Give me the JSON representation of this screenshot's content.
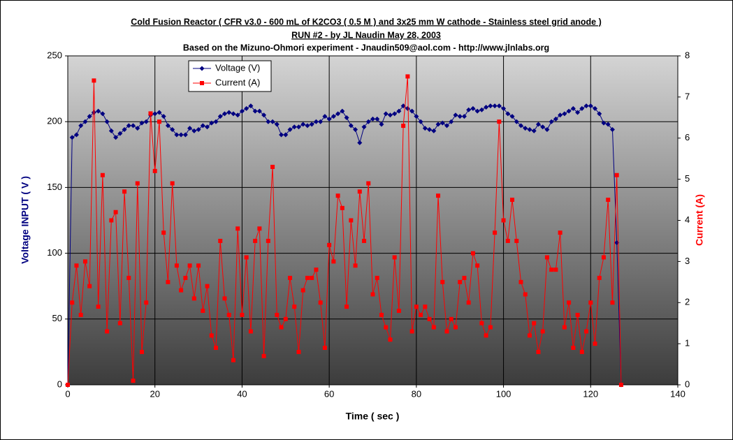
{
  "chart_data": {
    "type": "line",
    "title": "Cold Fusion Reactor ( CFR v3.0 - 600 mL of K2CO3 ( 0.5 M ) and 3x25 mm W cathode - Stainless steel grid anode  )",
    "subtitle": "RUN #2 - by JL Naudin May 28, 2003",
    "subtitle2": "Based on the Mizuno-Ohmori experiment - Jnaudin509@aol.com - http://www.jlnlabs.org",
    "xlabel": "Time ( sec )",
    "ylabel": "Voltage INPUT ( V )",
    "y2label": "Current (A)",
    "xlim": [
      0,
      140
    ],
    "xticks": [
      0,
      20,
      40,
      60,
      80,
      100,
      120,
      140
    ],
    "ylim": [
      0,
      250
    ],
    "yticks": [
      0,
      50,
      100,
      150,
      200,
      250
    ],
    "y2lim": [
      0,
      8
    ],
    "y2ticks": [
      0,
      1,
      2,
      3,
      4,
      5,
      6,
      7,
      8
    ],
    "grid": true,
    "legend": "top-left",
    "x": [
      0,
      1,
      2,
      3,
      4,
      5,
      6,
      7,
      8,
      9,
      10,
      11,
      12,
      13,
      14,
      15,
      16,
      17,
      18,
      19,
      20,
      21,
      22,
      23,
      24,
      25,
      26,
      27,
      28,
      29,
      30,
      31,
      32,
      33,
      34,
      35,
      36,
      37,
      38,
      39,
      40,
      41,
      42,
      43,
      44,
      45,
      46,
      47,
      48,
      49,
      50,
      51,
      52,
      53,
      54,
      55,
      56,
      57,
      58,
      59,
      60,
      61,
      62,
      63,
      64,
      65,
      66,
      67,
      68,
      69,
      70,
      71,
      72,
      73,
      74,
      75,
      76,
      77,
      78,
      79,
      80,
      81,
      82,
      83,
      84,
      85,
      86,
      87,
      88,
      89,
      90,
      91,
      92,
      93,
      94,
      95,
      96,
      97,
      98,
      99,
      100,
      101,
      102,
      103,
      104,
      105,
      106,
      107,
      108,
      109,
      110,
      111,
      112,
      113,
      114,
      115,
      116,
      117,
      118,
      119,
      120,
      121,
      122,
      123,
      124,
      125,
      126,
      127
    ],
    "series": [
      {
        "name": "Voltage (V)",
        "color": "#000080",
        "marker": "diamond",
        "values": [
          0,
          188,
          190,
          197,
          200,
          204,
          207,
          208,
          206,
          200,
          193,
          188,
          191,
          194,
          197,
          197,
          195,
          199,
          200,
          205,
          206,
          207,
          204,
          197,
          194,
          190,
          190,
          190,
          195,
          193,
          194,
          197,
          196,
          199,
          200,
          204,
          206,
          207,
          206,
          205,
          208,
          210,
          212,
          208,
          208,
          205,
          200,
          200,
          198,
          190,
          190,
          194,
          196,
          196,
          198,
          197,
          198,
          200,
          200,
          204,
          202,
          204,
          206,
          208,
          203,
          197,
          194,
          184,
          196,
          200,
          202,
          202,
          198,
          206,
          205,
          206,
          208,
          212,
          210,
          208,
          204,
          200,
          195,
          194,
          193,
          198,
          199,
          197,
          200,
          205,
          204,
          204,
          209,
          210,
          208,
          209,
          211,
          212,
          212,
          212,
          210,
          206,
          204,
          200,
          197,
          195,
          194,
          193,
          198,
          196,
          194,
          200,
          202,
          205,
          206,
          208,
          210,
          207,
          210,
          212,
          212,
          210,
          206,
          199,
          198,
          194,
          108,
          0
        ]
      },
      {
        "name": "Current (A)",
        "color": "#ff0000",
        "marker": "square",
        "axis": "y2",
        "values": [
          0,
          2.0,
          2.9,
          1.7,
          3.0,
          2.4,
          7.4,
          1.9,
          5.1,
          1.3,
          4.0,
          4.2,
          1.5,
          4.7,
          2.6,
          0.1,
          4.9,
          0.8,
          2.0,
          6.6,
          5.2,
          6.4,
          3.7,
          2.5,
          4.9,
          2.9,
          2.3,
          2.6,
          2.9,
          2.1,
          2.9,
          1.8,
          2.4,
          1.2,
          0.9,
          3.5,
          2.1,
          1.7,
          0.6,
          3.8,
          1.7,
          3.1,
          1.3,
          3.5,
          3.8,
          0.7,
          3.5,
          5.3,
          1.7,
          1.4,
          1.6,
          2.6,
          1.9,
          0.8,
          2.3,
          2.6,
          2.6,
          2.8,
          2.0,
          0.9,
          3.4,
          3.0,
          4.6,
          4.3,
          1.9,
          4.0,
          2.9,
          4.7,
          3.5,
          4.9,
          2.2,
          2.6,
          1.7,
          1.4,
          1.1,
          3.1,
          1.8,
          6.3,
          7.5,
          1.3,
          1.9,
          1.7,
          1.9,
          1.6,
          1.4,
          4.6,
          2.5,
          1.3,
          1.6,
          1.4,
          2.5,
          2.6,
          2.0,
          3.2,
          2.9,
          1.5,
          1.2,
          1.4,
          3.7,
          6.4,
          4.0,
          3.5,
          4.5,
          3.5,
          2.5,
          2.2,
          1.2,
          1.5,
          0.8,
          1.3,
          3.1,
          2.8,
          2.8,
          3.7,
          1.4,
          2.0,
          0.9,
          1.7,
          0.8,
          1.3,
          2.0,
          1.0,
          2.6,
          3.1,
          4.5,
          2.0,
          5.1,
          0
        ]
      }
    ]
  }
}
